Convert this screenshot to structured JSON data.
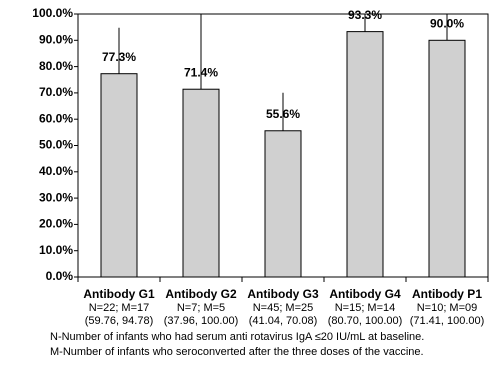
{
  "chart_data": {
    "type": "bar",
    "categories": [
      "Antibody G1",
      "Antibody G2",
      "Antibody G3",
      "Antibody G4",
      "Antibody P1"
    ],
    "category_notes": [
      "N=22; M=17",
      "N=7; M=5",
      "N=45; M=25",
      "N=15; M=14",
      "N=10; M=09"
    ],
    "values": [
      77.3,
      71.4,
      55.6,
      93.3,
      90.0
    ],
    "value_labels": [
      "77.3%",
      "71.4%",
      "55.6%",
      "93.3%",
      "90.0%"
    ],
    "ci": [
      [
        59.76,
        94.78
      ],
      [
        37.96,
        100.0
      ],
      [
        41.04,
        70.08
      ],
      [
        80.7,
        100.0
      ],
      [
        71.41,
        100.0
      ]
    ],
    "ci_labels": [
      "(59.76, 94.78)",
      "(37.96, 100.00)",
      "(41.04, 70.08)",
      "(80.70, 100.00)",
      "(71.41, 100.00)"
    ],
    "color": "#d0d0d0",
    "ylim": [
      0,
      100
    ],
    "yticks": [
      {
        "value": 0,
        "label": "0.0%"
      },
      {
        "value": 10,
        "label": "10.0%"
      },
      {
        "value": 20,
        "label": "20.0%"
      },
      {
        "value": 30,
        "label": "30.0%"
      },
      {
        "value": 40,
        "label": "40.0%"
      },
      {
        "value": 50,
        "label": "50.0%"
      },
      {
        "value": 60,
        "label": "60.0%"
      },
      {
        "value": 70,
        "label": "70.0%"
      },
      {
        "value": 80,
        "label": "80.0%"
      },
      {
        "value": 90,
        "label": "90.0%"
      },
      {
        "value": 100,
        "label": "100.0%"
      }
    ],
    "footnotes": [
      "N-Number of infants who had serum anti rotavirus IgA  ≤20 IU/mL at baseline.",
      "M-Number of infants who seroconverted after the three doses of the vaccine."
    ]
  }
}
